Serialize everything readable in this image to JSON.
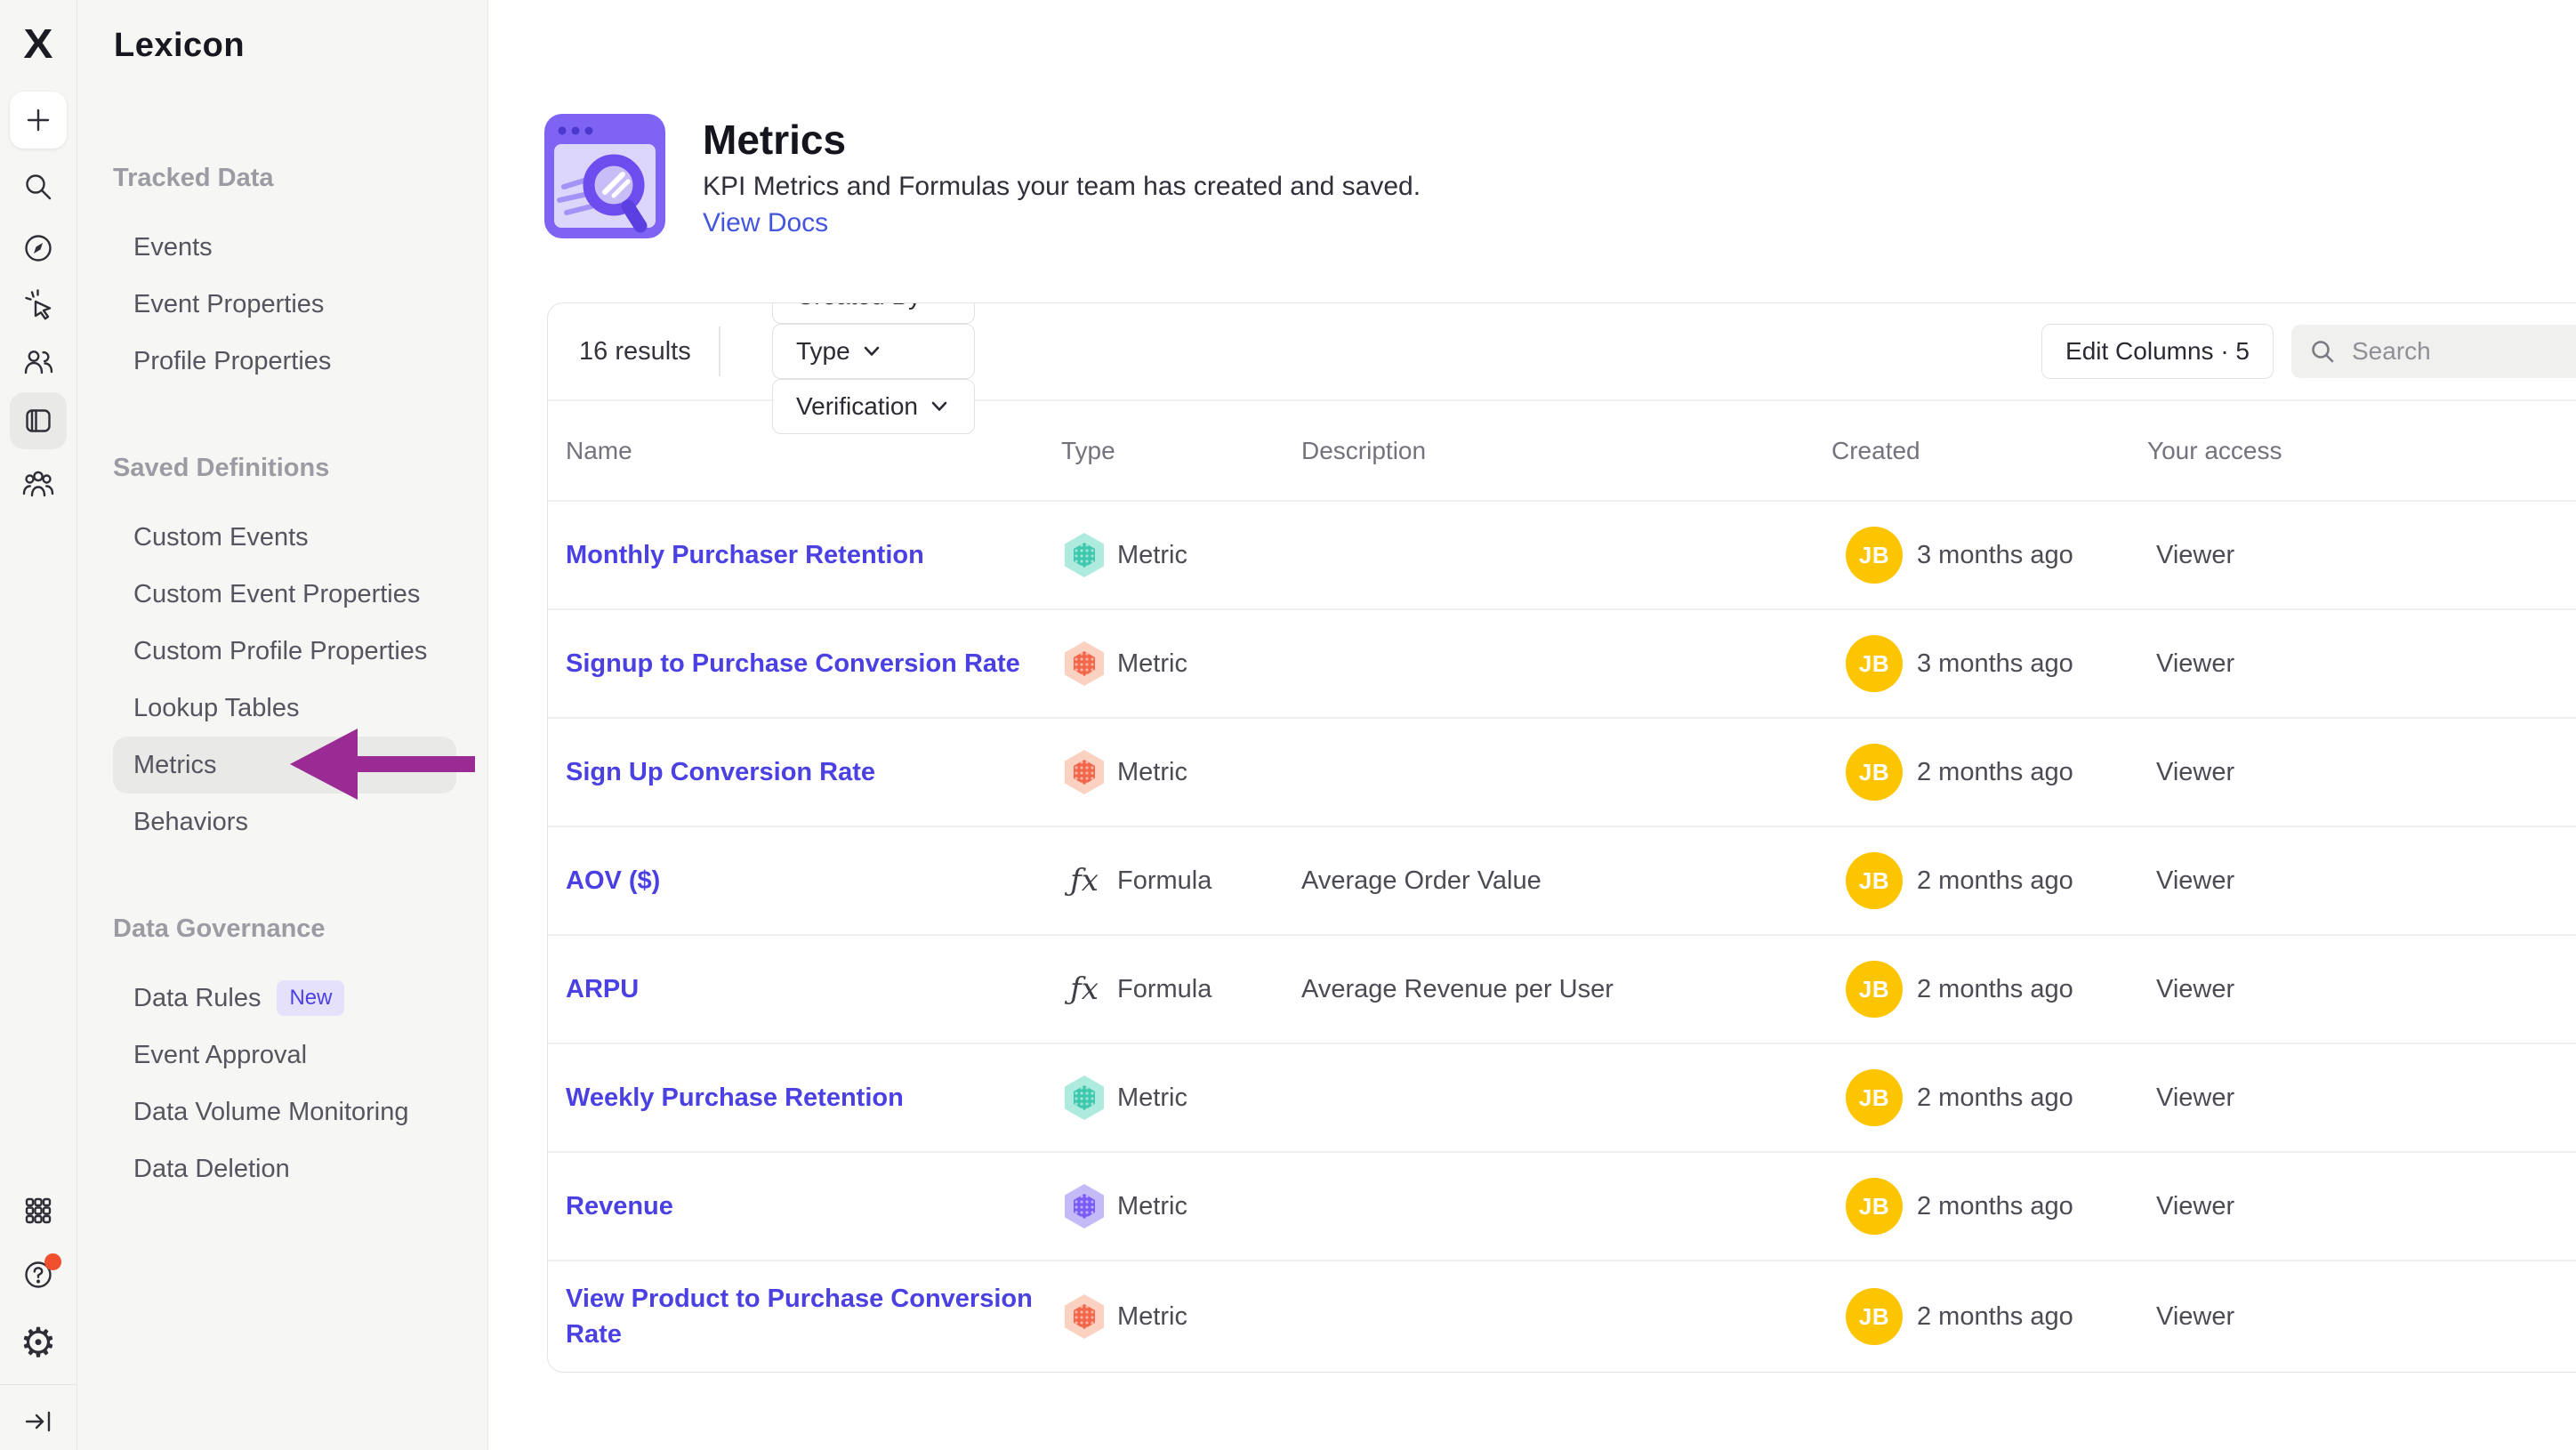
{
  "app": {
    "logo": "mixpanel-x",
    "title": "Lexicon"
  },
  "rail": {
    "icons": [
      "plus",
      "search",
      "compass",
      "cursor-click",
      "users",
      "lexicon-book",
      "group",
      "apps-grid",
      "help",
      "settings",
      "collapse"
    ],
    "active_icon": "lexicon-book",
    "help_has_notification": true
  },
  "sidebar": {
    "sections": [
      {
        "label": "Tracked Data",
        "items": [
          {
            "label": "Events"
          },
          {
            "label": "Event Properties"
          },
          {
            "label": "Profile Properties"
          }
        ]
      },
      {
        "label": "Saved Definitions",
        "items": [
          {
            "label": "Custom Events"
          },
          {
            "label": "Custom Event Properties"
          },
          {
            "label": "Custom Profile Properties"
          },
          {
            "label": "Lookup Tables"
          },
          {
            "label": "Metrics",
            "active": true
          },
          {
            "label": "Behaviors"
          }
        ]
      },
      {
        "label": "Data Governance",
        "items": [
          {
            "label": "Data Rules",
            "badge": "New"
          },
          {
            "label": "Event Approval"
          },
          {
            "label": "Data Volume Monitoring"
          },
          {
            "label": "Data Deletion"
          }
        ]
      }
    ]
  },
  "annotation": {
    "type": "arrow-left",
    "color": "#9a2b94",
    "target": "Metrics"
  },
  "header": {
    "title": "Metrics",
    "subtitle": "KPI Metrics and Formulas your team has created and saved.",
    "link": "View Docs"
  },
  "toolbar": {
    "results": "16 results",
    "filters": [
      {
        "label": "Created By"
      },
      {
        "label": "Type"
      },
      {
        "label": "Verification"
      }
    ],
    "edit_columns": "Edit Columns · 5",
    "search_placeholder": "Search"
  },
  "table": {
    "columns": [
      "Name",
      "Type",
      "Description",
      "Created",
      "Your access"
    ],
    "rows": [
      {
        "name": "Monthly Purchaser Retention",
        "type": "Metric",
        "type_icon": "metric-teal",
        "description": "",
        "avatar": "JB",
        "created": "3 months ago",
        "access": "Viewer"
      },
      {
        "name": "Signup to Purchase Conversion Rate",
        "type": "Metric",
        "type_icon": "metric-orange",
        "description": "",
        "avatar": "JB",
        "created": "3 months ago",
        "access": "Viewer"
      },
      {
        "name": "Sign Up Conversion Rate",
        "type": "Metric",
        "type_icon": "metric-orange",
        "description": "",
        "avatar": "JB",
        "created": "2 months ago",
        "access": "Viewer"
      },
      {
        "name": "AOV ($)",
        "type": "Formula",
        "type_icon": "formula",
        "description": "Average Order Value",
        "avatar": "JB",
        "created": "2 months ago",
        "access": "Viewer"
      },
      {
        "name": "ARPU",
        "type": "Formula",
        "type_icon": "formula",
        "description": "Average Revenue per User",
        "avatar": "JB",
        "created": "2 months ago",
        "access": "Viewer"
      },
      {
        "name": "Weekly Purchase Retention",
        "type": "Metric",
        "type_icon": "metric-teal",
        "description": "",
        "avatar": "JB",
        "created": "2 months ago",
        "access": "Viewer"
      },
      {
        "name": "Revenue",
        "type": "Metric",
        "type_icon": "metric-purple",
        "description": "",
        "avatar": "JB",
        "created": "2 months ago",
        "access": "Viewer"
      },
      {
        "name": "View Product to Purchase Conversion Rate",
        "type": "Metric",
        "type_icon": "metric-orange",
        "description": "",
        "avatar": "JB",
        "created": "2 months ago",
        "access": "Viewer"
      }
    ]
  },
  "colors": {
    "accent_link": "#4b40e2",
    "annotation_arrow": "#9a2b94",
    "avatar_bg": "#fdc500",
    "metric_teal_outer": "#aeeadd",
    "metric_teal_inner": "#3ec9ae",
    "metric_orange_outer": "#fbd2c2",
    "metric_orange_inner": "#f2674a",
    "metric_purple_outer": "#c4baf8",
    "metric_purple_inner": "#7a5cf6",
    "sidebar_bg": "#f6f6f4",
    "active_item_bg": "#e9e9e7",
    "notification_dot": "#f0502e"
  }
}
